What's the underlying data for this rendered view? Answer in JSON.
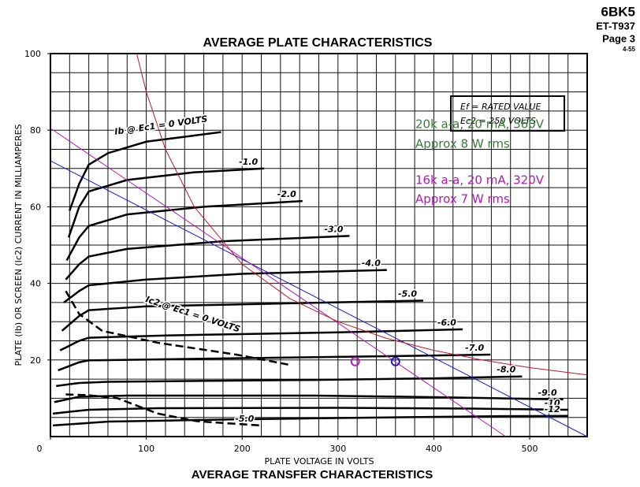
{
  "chart_data": {
    "type": "line",
    "header": [
      "6BK5",
      "ET-T937",
      "Page 3",
      "4-55"
    ],
    "title": "AVERAGE PLATE CHARACTERISTICS",
    "footer": "AVERAGE TRANSFER CHARACTERISTICS",
    "x_label": "PLATE VOLTAGE IN VOLTS",
    "y_label": "PLATE (Ib) OR SCREEN (Ic2) CURRENT IN MILLIAMPERES",
    "box_text": [
      "Ef = RATED VALUE",
      "Ec2 = 250 VOLTS"
    ],
    "annotations": [
      {
        "text": "20k a-a, 20 mA, 360V",
        "color": "#3d7a3d"
      },
      {
        "text": "Approx 8 W rms",
        "color": "#3d7a3d"
      },
      {
        "text": "16k a-a, 20 mA, 320V",
        "color": "#b01ab0"
      },
      {
        "text": "Approx 7 W rms",
        "color": "#b01ab0"
      }
    ],
    "xlim": [
      0,
      560
    ],
    "ylim": [
      0,
      100
    ],
    "xticks": [
      0,
      100,
      200,
      300,
      400,
      500
    ],
    "yticks": [
      20,
      40,
      60,
      80,
      100
    ],
    "xgrid": [
      0,
      20,
      40,
      60,
      80,
      100,
      120,
      140,
      160,
      180,
      200,
      220,
      240,
      260,
      280,
      300,
      320,
      340,
      360,
      380,
      400,
      420,
      440,
      460,
      480,
      500,
      520,
      540,
      560
    ],
    "ygrid": [
      0,
      5,
      10,
      15,
      20,
      25,
      30,
      35,
      40,
      45,
      50,
      55,
      60,
      65,
      70,
      75,
      80,
      85,
      90,
      95,
      100
    ],
    "grid": true,
    "series": [
      {
        "name": "Ib @ Ec1 = 0 VOLTS",
        "color": "#000000",
        "x": [
          20,
          30,
          40,
          60,
          100,
          178
        ],
        "values": [
          59,
          66,
          71,
          74,
          77,
          79.5
        ]
      },
      {
        "name": "-1.0",
        "color": "#000000",
        "x": [
          19,
          30,
          40,
          80,
          150,
          223
        ],
        "values": [
          52,
          60,
          64,
          67,
          69,
          70
        ]
      },
      {
        "name": "-2.0",
        "color": "#000000",
        "x": [
          17,
          30,
          40,
          80,
          160,
          263
        ],
        "values": [
          46,
          52,
          55,
          58,
          60,
          61.5
        ]
      },
      {
        "name": "-3.0",
        "color": "#000000",
        "x": [
          16,
          30,
          40,
          80,
          180,
          312
        ],
        "values": [
          41,
          45,
          47,
          49,
          51,
          52.4
        ]
      },
      {
        "name": "-4.0",
        "color": "#000000",
        "x": [
          14,
          30,
          40,
          100,
          200,
          351
        ],
        "values": [
          35,
          38,
          39.5,
          41,
          42.5,
          43.5
        ]
      },
      {
        "name": "-5.0",
        "color": "#000000",
        "x": [
          12,
          30,
          40,
          100,
          250,
          389
        ],
        "values": [
          27.6,
          31.5,
          33,
          34,
          34.8,
          35.5
        ]
      },
      {
        "name": "-6.0",
        "color": "#000000",
        "x": [
          10,
          30,
          40,
          120,
          300,
          430
        ],
        "values": [
          22.5,
          25,
          25.8,
          26.4,
          27.2,
          28
        ]
      },
      {
        "name": "-7.0",
        "color": "#000000",
        "x": [
          8,
          30,
          40,
          150,
          300,
          459
        ],
        "values": [
          17.3,
          19.4,
          19.9,
          20.3,
          20.8,
          21.4
        ]
      },
      {
        "name": "-8.0",
        "color": "#000000",
        "x": [
          6,
          30,
          60,
          277,
          400,
          492
        ],
        "values": [
          13.2,
          14,
          14.3,
          14.8,
          15.2,
          15.7
        ]
      },
      {
        "name": "-9.0",
        "color": "#000000",
        "x": [
          4,
          30,
          80,
          277,
          400,
          535
        ],
        "values": [
          9,
          10.4,
          10.7,
          10.7,
          10.3,
          9.7
        ]
      },
      {
        "name": "-10",
        "color": "#000000",
        "x": [
          2.5,
          40,
          112,
          300,
          440,
          540
        ],
        "values": [
          6,
          7,
          7.4,
          7.5,
          7.3,
          7
        ]
      },
      {
        "name": "-12",
        "color": "#000000",
        "x": [
          2.5,
          60,
          194,
          350,
          460,
          540
        ],
        "values": [
          2.9,
          3.9,
          4.5,
          5,
          5.3,
          5.4
        ]
      },
      {
        "name": "Ic2 @ Ec1 = 0 VOLTS",
        "color": "#000000",
        "dash": true,
        "x": [
          16,
          30,
          54,
          112,
          194,
          248
        ],
        "values": [
          38,
          32,
          27.6,
          24.5,
          21.4,
          18.8
        ]
      },
      {
        "name": "-5.0",
        "color": "#000000",
        "dash": true,
        "x": [
          16,
          40,
          70,
          112,
          153,
          219
        ],
        "values": [
          11,
          10.8,
          10,
          6,
          4,
          2.9
        ]
      },
      {
        "color": "#1a1acc",
        "thin": true,
        "x": [
          0,
          560
        ],
        "values": [
          72,
          0
        ]
      },
      {
        "color": "#b01ab0",
        "thin": true,
        "x": [
          0,
          475
        ],
        "values": [
          80.5,
          0
        ]
      },
      {
        "color": "#c0182a",
        "thin": true,
        "x": [
          90,
          100,
          120,
          150,
          200,
          250,
          300,
          350,
          400,
          450,
          500,
          560
        ],
        "values": [
          100,
          90,
          75,
          60,
          45,
          36,
          30,
          25.7,
          22.5,
          20,
          18,
          16.1
        ]
      }
    ],
    "points": [
      {
        "color": "#b01ab0",
        "x": 318,
        "y": 19.6
      },
      {
        "color": "#1a1acc",
        "x": 360,
        "y": 19.6
      }
    ]
  }
}
